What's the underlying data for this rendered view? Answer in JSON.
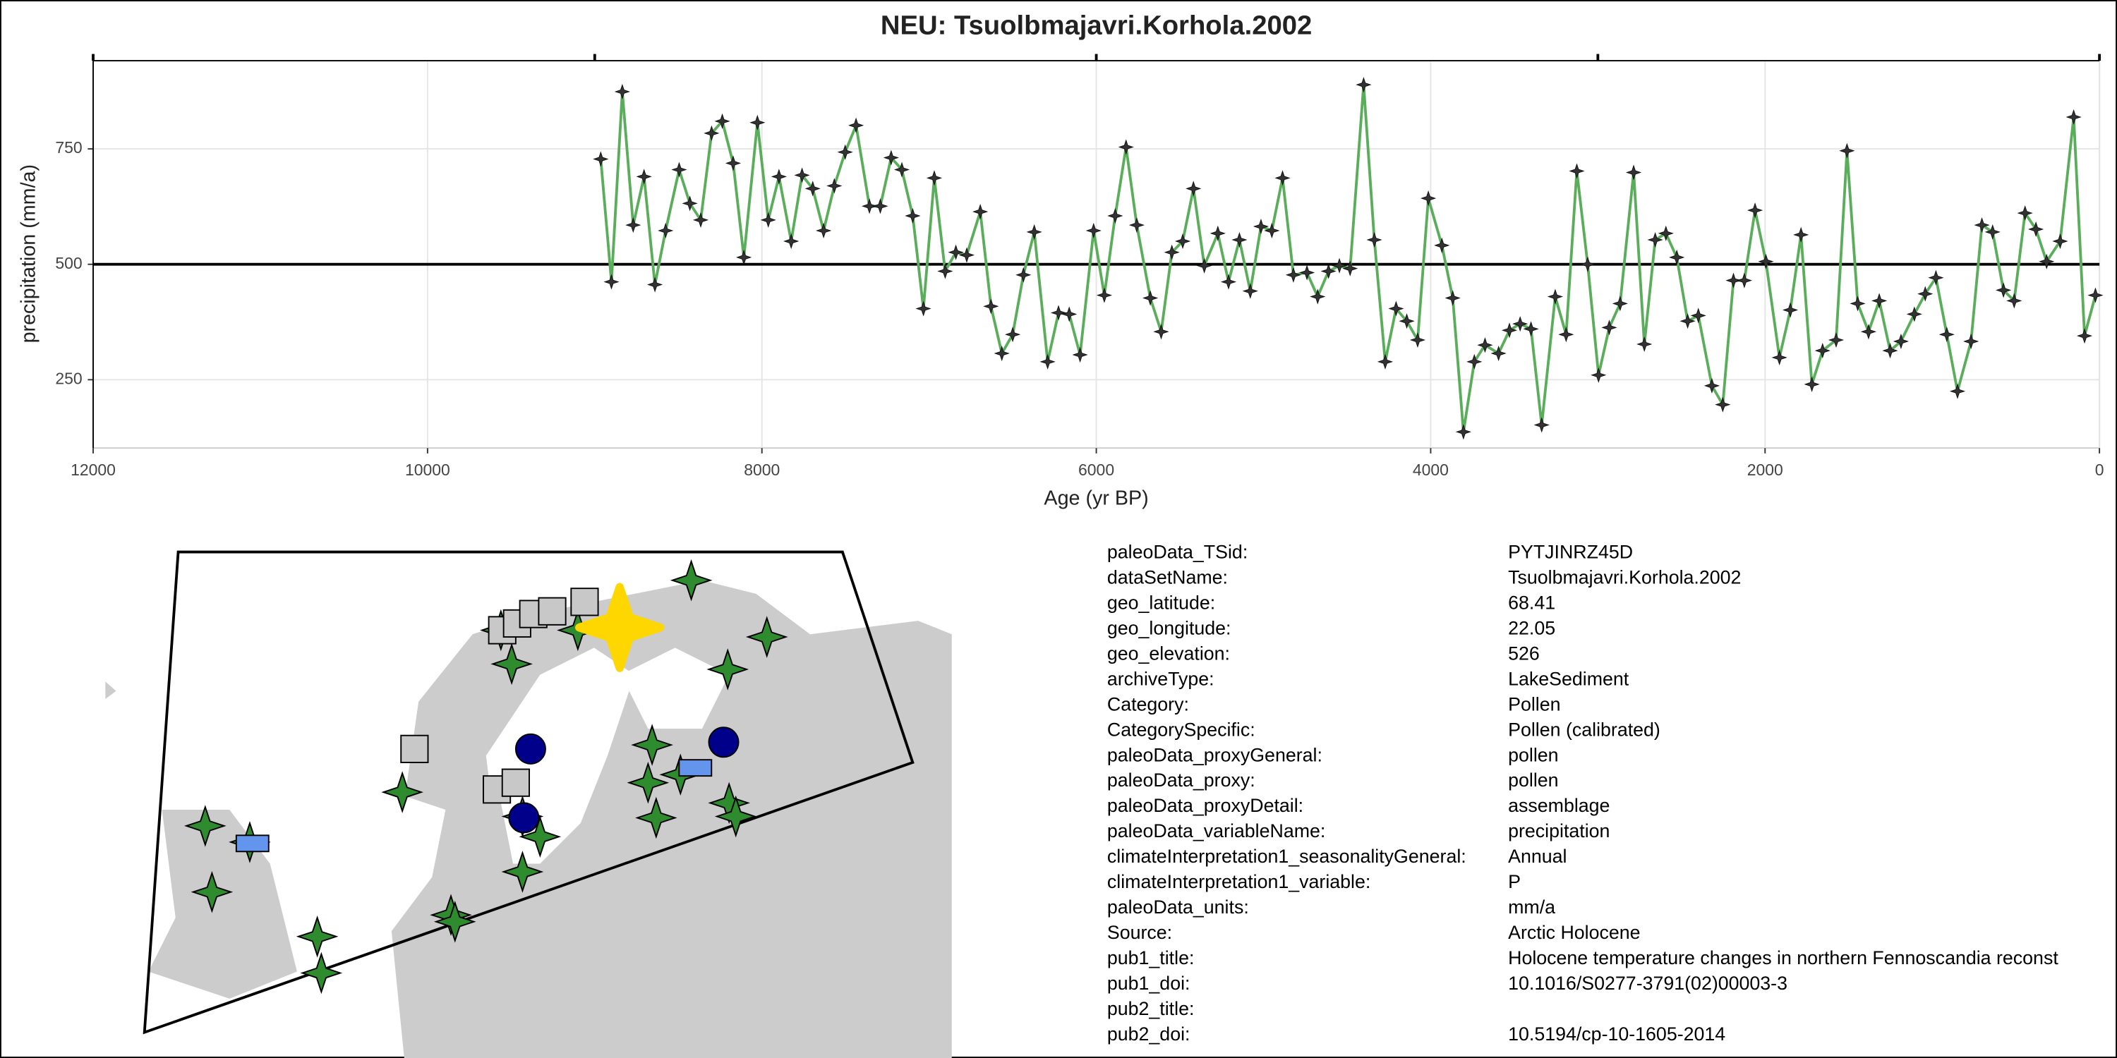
{
  "chart_data": {
    "type": "line",
    "title": "NEU: Tsuolbmajavri.Korhola.2002",
    "x_label": "Age (yr BP)",
    "y_label": "precipitation (mm/a)",
    "xlim": [
      12000,
      0
    ],
    "xticks": [
      12000,
      10000,
      8000,
      6000,
      4000,
      2000,
      0
    ],
    "x2ticks": [
      12000,
      9000,
      6000,
      3000,
      0
    ],
    "ylim": [
      102,
      941
    ],
    "yticks": [
      250,
      500,
      750
    ],
    "grid": true,
    "reference_line": 500,
    "series": [
      {
        "name": "precipitation",
        "color": "#5aad5a",
        "x": [
          8964,
          8900,
          8835,
          8770,
          8705,
          8640,
          8576,
          8495,
          8431,
          8366,
          8301,
          8237,
          8172,
          8108,
          8027,
          7962,
          7898,
          7825,
          7760,
          7696,
          7631,
          7567,
          7502,
          7437,
          7357,
          7292,
          7227,
          7163,
          7098,
          7034,
          6969,
          6904,
          6840,
          6775,
          6694,
          6630,
          6565,
          6500,
          6436,
          6371,
          6291,
          6226,
          6162,
          6097,
          6016,
          5952,
          5887,
          5822,
          5758,
          5677,
          5612,
          5548,
          5483,
          5419,
          5354,
          5273,
          5209,
          5144,
          5079,
          5015,
          4950,
          4886,
          4821,
          4740,
          4676,
          4611,
          4546,
          4482,
          4401,
          4337,
          4272,
          4207,
          4143,
          4078,
          4014,
          3933,
          3868,
          3804,
          3739,
          3675,
          3594,
          3529,
          3465,
          3400,
          3336,
          3255,
          3190,
          3126,
          3061,
          2996,
          2932,
          2867,
          2786,
          2722,
          2657,
          2593,
          2528,
          2463,
          2399,
          2318,
          2253,
          2189,
          2124,
          2060,
          1995,
          1914,
          1849,
          1785,
          1720,
          1656,
          1575,
          1510,
          1446,
          1381,
          1317,
          1252,
          1187,
          1107,
          1042,
          978,
          913,
          849,
          768,
          703,
          639,
          574,
          510,
          445,
          380,
          316,
          235,
          154,
          89,
          24
        ],
        "values": [
          728,
          462,
          874,
          585,
          690,
          456,
          573,
          705,
          632,
          596,
          784,
          810,
          719,
          515,
          807,
          596,
          690,
          550,
          693,
          664,
          573,
          670,
          743,
          801,
          626,
          626,
          731,
          705,
          605,
          404,
          687,
          485,
          526,
          520,
          614,
          409,
          307,
          348,
          477,
          570,
          289,
          395,
          392,
          304,
          573,
          433,
          605,
          754,
          585,
          427,
          354,
          526,
          550,
          664,
          497,
          567,
          462,
          553,
          442,
          582,
          573,
          687,
          477,
          482,
          430,
          485,
          497,
          491,
          889,
          553,
          289,
          404,
          377,
          336,
          643,
          541,
          427,
          137,
          289,
          325,
          307,
          357,
          371,
          360,
          152,
          430,
          348,
          702,
          500,
          260,
          363,
          415,
          699,
          327,
          553,
          567,
          515,
          377,
          389,
          237,
          196,
          465,
          465,
          617,
          506,
          298,
          401,
          564,
          240,
          313,
          336,
          746,
          415,
          354,
          421,
          313,
          333,
          392,
          436,
          471,
          348,
          225,
          333,
          585,
          570,
          444,
          421,
          611,
          576,
          506,
          550,
          819,
          345,
          433
        ]
      }
    ]
  },
  "metadata": {
    "rows": [
      [
        "paleoData_TSid:",
        "PYTJINRZ45D"
      ],
      [
        "dataSetName:",
        "Tsuolbmajavri.Korhola.2002"
      ],
      [
        "geo_latitude:",
        "68.41"
      ],
      [
        "geo_longitude:",
        "22.05"
      ],
      [
        "geo_elevation:",
        "526"
      ],
      [
        "archiveType:",
        "LakeSediment"
      ],
      [
        "Category:",
        "Pollen"
      ],
      [
        "CategorySpecific:",
        "Pollen (calibrated)"
      ],
      [
        "paleoData_proxyGeneral:",
        "pollen"
      ],
      [
        "paleoData_proxy:",
        "pollen"
      ],
      [
        "paleoData_proxyDetail:",
        "assemblage"
      ],
      [
        "paleoData_variableName:",
        "precipitation"
      ],
      [
        "climateInterpretation1_seasonalityGeneral:",
        "Annual"
      ],
      [
        "climateInterpretation1_variable:",
        "P"
      ],
      [
        "paleoData_units:",
        "mm/a"
      ],
      [
        "Source:",
        "Arctic Holocene"
      ],
      [
        "pub1_title:",
        "Holocene temperature changes in northern Fennoscandia reconst"
      ],
      [
        "pub1_doi:",
        "10.1016/S0277-3791(02)00003-3"
      ],
      [
        "pub2_title:"
      ],
      [
        "pub2_doi:",
        "10.5194/cp-10-1605-2014"
      ]
    ]
  }
}
